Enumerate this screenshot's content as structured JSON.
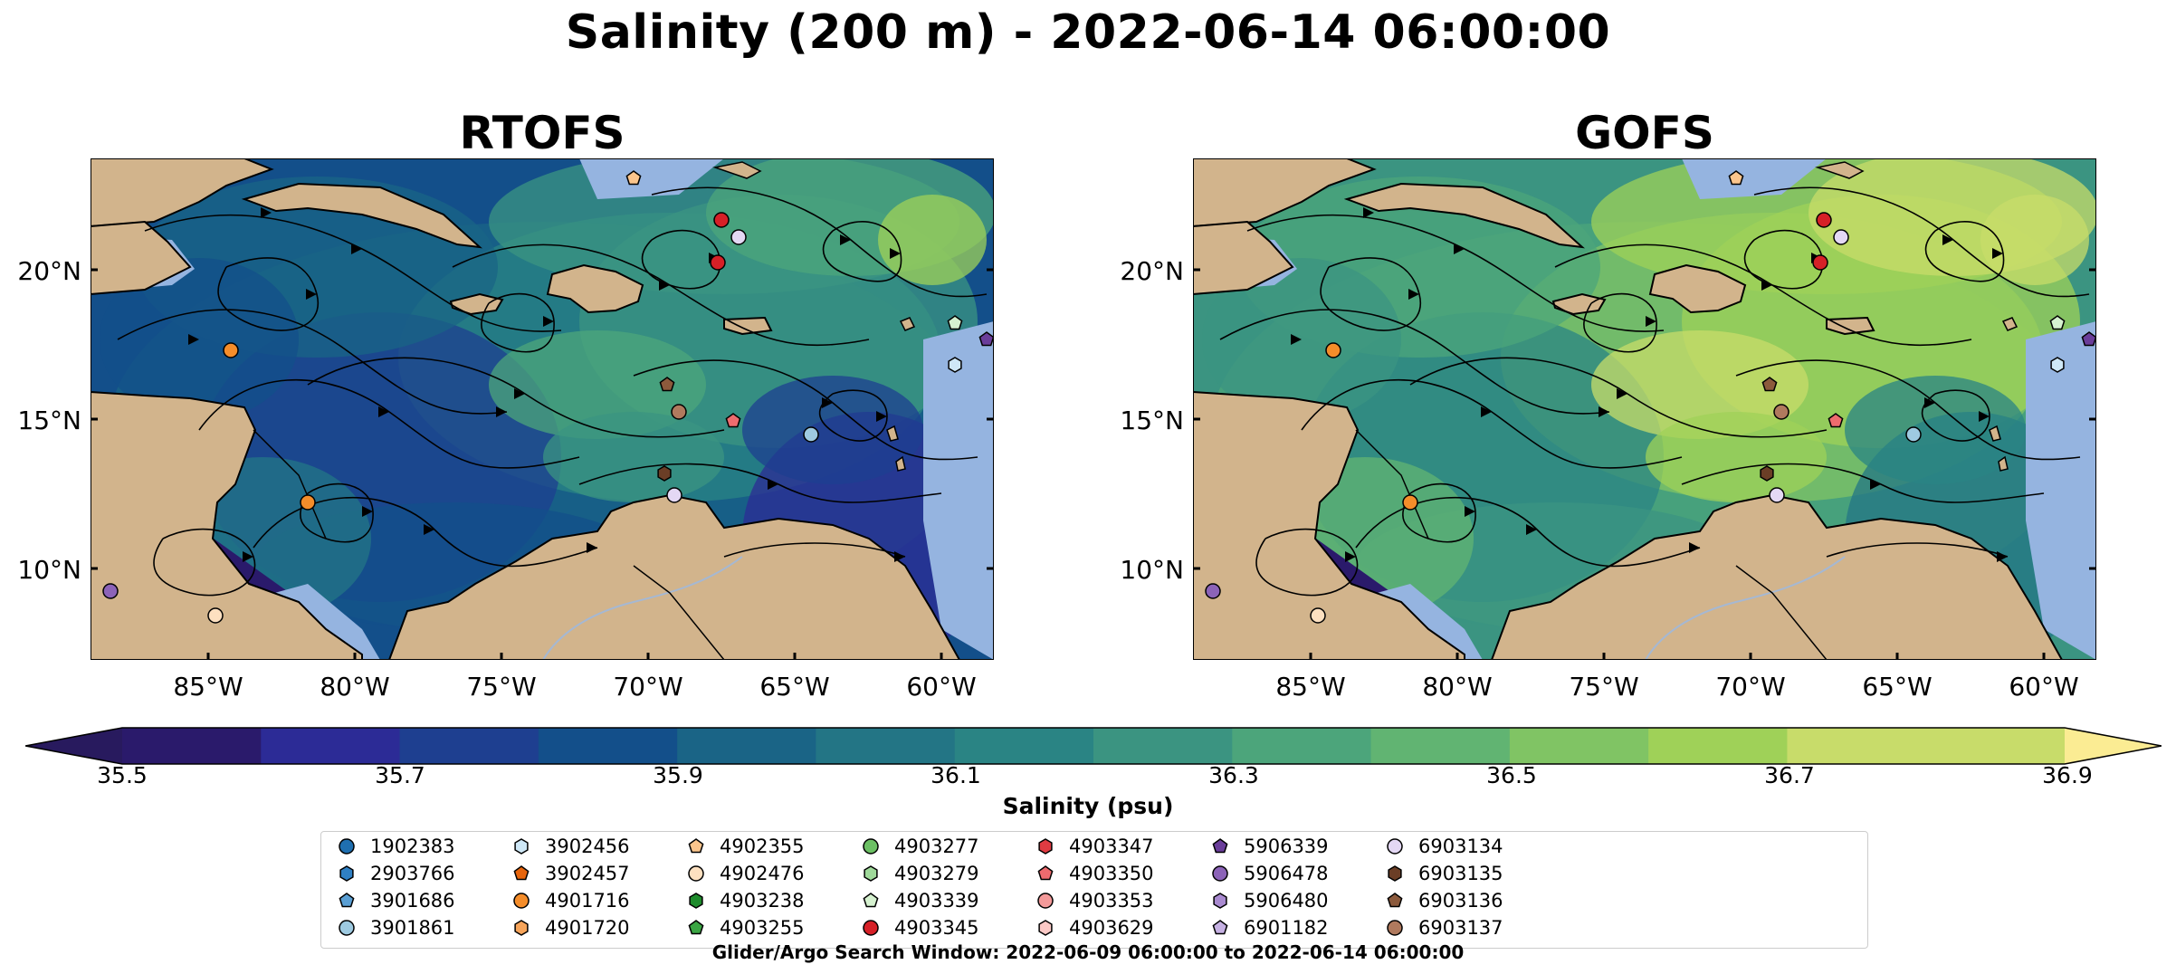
{
  "title": "Salinity (200 m) - 2022-06-14 06:00:00",
  "panels": [
    {
      "title": "RTOFS",
      "palette_shift": 0
    },
    {
      "title": "GOFS",
      "palette_shift": 4
    }
  ],
  "map": {
    "x_ticks": [
      "85°W",
      "80°W",
      "75°W",
      "70°W",
      "65°W",
      "60°W"
    ],
    "y_ticks": [
      "20°N",
      "15°N",
      "10°N"
    ],
    "land_color": "#d2b48c",
    "shelf_color": "#95b4e0",
    "coast_color": "#000000",
    "river_color": "#a5b8d3"
  },
  "colorbar": {
    "label": "Salinity (psu)",
    "ticks": [
      "35.5",
      "35.7",
      "35.9",
      "36.1",
      "36.3",
      "36.5",
      "36.7",
      "36.9"
    ],
    "min": 35.5,
    "max": 36.9,
    "step": 0.1,
    "colors": [
      "#2a1a6b",
      "#2c2b96",
      "#1e3f90",
      "#134f8a",
      "#1a6486",
      "#237585",
      "#2a8484",
      "#3b9481",
      "#4ca57b",
      "#61b472",
      "#80c464",
      "#9fd158",
      "#c8dc6a"
    ],
    "under_color": "#281a5e",
    "over_color": "#fbec93",
    "extend": "both"
  },
  "legend": {
    "items": [
      {
        "id": "1902383",
        "marker": "circle",
        "color": "#1f6fb0"
      },
      {
        "id": "2903766",
        "marker": "hexagon",
        "color": "#2f80c4"
      },
      {
        "id": "3901686",
        "marker": "pentagon",
        "color": "#5a9fd4"
      },
      {
        "id": "3901861",
        "marker": "circle",
        "color": "#9ecae1"
      },
      {
        "id": "3902456",
        "marker": "hexagon",
        "color": "#cfe8f7"
      },
      {
        "id": "3902457",
        "marker": "pentagon",
        "color": "#e8650c"
      },
      {
        "id": "4901716",
        "marker": "circle",
        "color": "#f58d2a"
      },
      {
        "id": "4901720",
        "marker": "hexagon",
        "color": "#f6a45a"
      },
      {
        "id": "4902355",
        "marker": "pentagon",
        "color": "#fbc58c"
      },
      {
        "id": "4902476",
        "marker": "circle",
        "color": "#fde0c0"
      },
      {
        "id": "4903238",
        "marker": "hexagon",
        "color": "#1e8b2c"
      },
      {
        "id": "4903255",
        "marker": "pentagon",
        "color": "#3aa543"
      },
      {
        "id": "4903277",
        "marker": "circle",
        "color": "#6cc064"
      },
      {
        "id": "4903279",
        "marker": "hexagon",
        "color": "#9fd99a"
      },
      {
        "id": "4903339",
        "marker": "pentagon",
        "color": "#d6f2d0"
      },
      {
        "id": "4903345",
        "marker": "circle",
        "color": "#d62027"
      },
      {
        "id": "4903347",
        "marker": "hexagon",
        "color": "#e03b42"
      },
      {
        "id": "4903350",
        "marker": "pentagon",
        "color": "#ee6b6e"
      },
      {
        "id": "4903353",
        "marker": "circle",
        "color": "#f49a9a"
      },
      {
        "id": "4903629",
        "marker": "hexagon",
        "color": "#fbc9c6"
      },
      {
        "id": "5906339",
        "marker": "pentagon",
        "color": "#6a3d9a"
      },
      {
        "id": "5906478",
        "marker": "circle",
        "color": "#8c63b8"
      },
      {
        "id": "5906480",
        "marker": "hexagon",
        "color": "#a98ad0"
      },
      {
        "id": "6901182",
        "marker": "pentagon",
        "color": "#c6b1e3"
      },
      {
        "id": "6903134",
        "marker": "circle",
        "color": "#e4d8f4"
      },
      {
        "id": "6903135",
        "marker": "hexagon",
        "color": "#6b3e26"
      },
      {
        "id": "6903136",
        "marker": "pentagon",
        "color": "#8c5a3c"
      },
      {
        "id": "6903137",
        "marker": "circle",
        "color": "#b07a5e"
      }
    ]
  },
  "footnote": "Glider/Argo Search Window: 2022-06-09 06:00:00 to 2022-06-14 06:00:00"
}
